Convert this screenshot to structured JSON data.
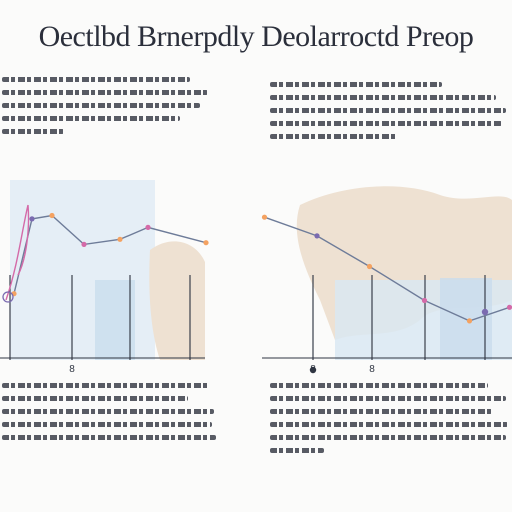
{
  "header": {
    "title": "Oectlbd Brnerpdly Deolarroctd Preop"
  },
  "colors": {
    "axis": "#2f3542",
    "grid": "#3a3f4b",
    "panel": "#dbe8f3",
    "land": "#eee1d2",
    "line": "#6e7c99",
    "marker_orange": "#f4a261",
    "marker_pink": "#d46aa8",
    "marker_purple": "#7b6bb0"
  },
  "chart_data": [
    {
      "type": "line",
      "title": "",
      "xlabel": "",
      "ylabel": "",
      "xlim": [
        0,
        10
      ],
      "ylim": [
        0,
        10
      ],
      "x_tick_labels": [
        "",
        "",
        "8",
        "",
        "",
        ""
      ],
      "series": [
        {
          "values": [
            [
              0.2,
              3.9
            ],
            [
              1.1,
              8.3
            ],
            [
              2.1,
              8.5
            ],
            [
              3.7,
              6.8
            ],
            [
              5.5,
              7.1
            ],
            [
              6.9,
              7.8
            ],
            [
              9.8,
              6.9
            ]
          ]
        }
      ]
    },
    {
      "type": "line",
      "title": "",
      "xlabel": "",
      "ylabel": "",
      "xlim": [
        0,
        10
      ],
      "ylim": [
        0,
        10
      ],
      "x_tick_labels": [
        "8",
        "8",
        "",
        "",
        "",
        ""
      ],
      "series": [
        {
          "values": [
            [
              0.1,
              8.4
            ],
            [
              2.2,
              7.3
            ],
            [
              4.3,
              5.5
            ],
            [
              6.5,
              3.5
            ],
            [
              8.3,
              2.3
            ],
            [
              9.9,
              3.1
            ]
          ]
        }
      ]
    }
  ]
}
